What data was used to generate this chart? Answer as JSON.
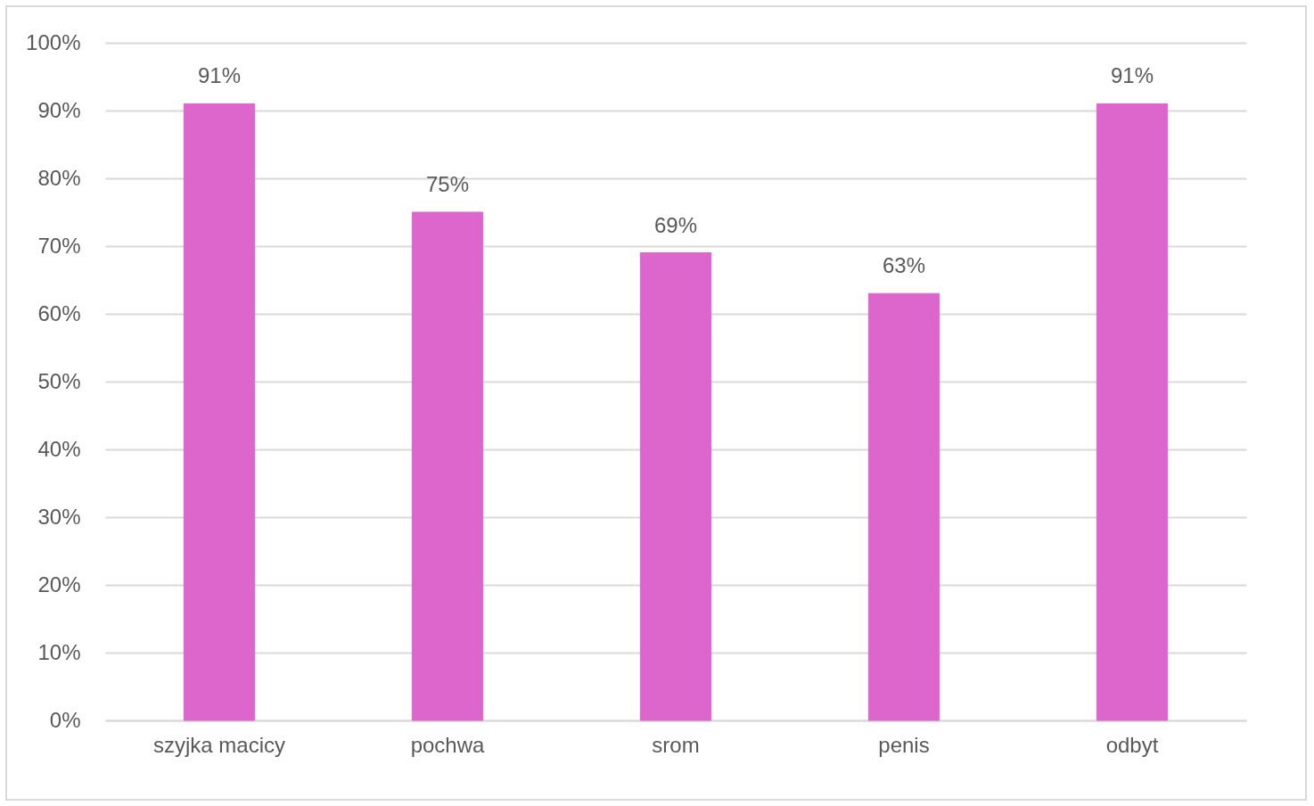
{
  "chart_data": {
    "type": "bar",
    "categories": [
      "szyjka macicy",
      "pochwa",
      "srom",
      "penis",
      "odbyt"
    ],
    "values": [
      91,
      75,
      69,
      63,
      91
    ],
    "color": "#dd66cc",
    "value_labels": [
      "91%",
      "75%",
      "69%",
      "63%",
      "91%"
    ],
    "ylim": [
      0,
      100
    ],
    "yticks": [
      {
        "value": 0,
        "label": "0%"
      },
      {
        "value": 10,
        "label": "10%"
      },
      {
        "value": 20,
        "label": "20%"
      },
      {
        "value": 30,
        "label": "30%"
      },
      {
        "value": 40,
        "label": "40%"
      },
      {
        "value": 50,
        "label": "50%"
      },
      {
        "value": 60,
        "label": "60%"
      },
      {
        "value": 70,
        "label": "70%"
      },
      {
        "value": 80,
        "label": "80%"
      },
      {
        "value": 90,
        "label": "90%"
      },
      {
        "value": 100,
        "label": "100%"
      }
    ],
    "grid": "y"
  }
}
